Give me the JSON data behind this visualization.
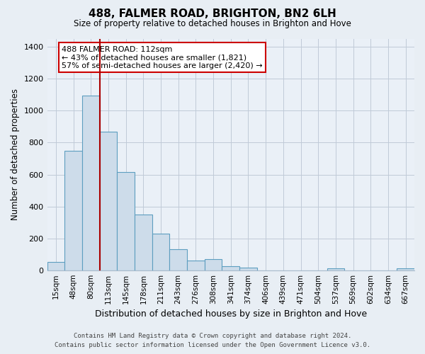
{
  "title": "488, FALMER ROAD, BRIGHTON, BN2 6LH",
  "subtitle": "Size of property relative to detached houses in Brighton and Hove",
  "xlabel": "Distribution of detached houses by size in Brighton and Hove",
  "ylabel": "Number of detached properties",
  "categories": [
    "15sqm",
    "48sqm",
    "80sqm",
    "113sqm",
    "145sqm",
    "178sqm",
    "211sqm",
    "243sqm",
    "276sqm",
    "308sqm",
    "341sqm",
    "374sqm",
    "406sqm",
    "439sqm",
    "471sqm",
    "504sqm",
    "537sqm",
    "569sqm",
    "602sqm",
    "634sqm",
    "667sqm"
  ],
  "values": [
    50,
    750,
    1095,
    868,
    615,
    348,
    228,
    130,
    62,
    70,
    25,
    18,
    0,
    0,
    0,
    0,
    10,
    0,
    0,
    0,
    10
  ],
  "bar_color": "#cddcea",
  "bar_edge_color": "#5d9ec0",
  "vline_x_index": 2,
  "vline_color": "#aa0000",
  "annotation_text": "488 FALMER ROAD: 112sqm\n← 43% of detached houses are smaller (1,821)\n57% of semi-detached houses are larger (2,420) →",
  "annotation_box_color": "#ffffff",
  "annotation_box_edge_color": "#cc0000",
  "ylim": [
    0,
    1450
  ],
  "yticks": [
    0,
    200,
    400,
    600,
    800,
    1000,
    1200,
    1400
  ],
  "footer_line1": "Contains HM Land Registry data © Crown copyright and database right 2024.",
  "footer_line2": "Contains public sector information licensed under the Open Government Licence v3.0.",
  "bg_color": "#e8eef4",
  "plot_bg_color": "#eaf0f7",
  "grid_color": "#c0cad8"
}
